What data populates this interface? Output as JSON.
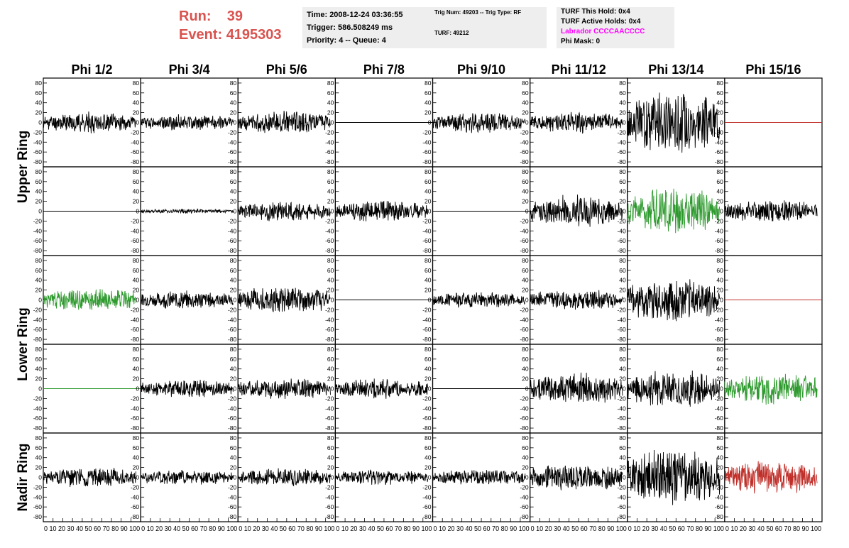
{
  "header": {
    "run_label": "Run:",
    "run_value": "39",
    "event_label": "Event:",
    "event_value": "4195303"
  },
  "info_panel_1": {
    "time": "Time: 2008-12-24 03:36:55",
    "trigger": "Trigger: 586.508249 ms",
    "priority": "Priority: 4 -- Queue: 4"
  },
  "info_panel_2": {
    "trig": "Trig Num: 49203 -- Trig Type: RF",
    "turf": "TURF: 49212"
  },
  "info_panel_3": {
    "this_hold": "TURF This Hold: 0x4",
    "active_holds": "TURF Active Holds: 0x4",
    "labrador": "Labrador CCCCAACCCC",
    "phi_mask": "Phi Mask: 0"
  },
  "colors": {
    "normal": "#000000",
    "triggered": "#2e9a2e",
    "masked": "#c0302a",
    "run_text": "#d9534f",
    "labrador_text": "#ff00ff"
  },
  "chart_data": {
    "type": "line",
    "description_source": "waveform grid: 5 ring rows x 8 phi columns",
    "columns": [
      "Phi 1/2",
      "Phi 3/4",
      "Phi 5/6",
      "Phi 7/8",
      "Phi 9/10",
      "Phi 11/12",
      "Phi 13/14",
      "Phi 15/16"
    ],
    "row_labels": [
      "Upper Ring",
      "Lower Ring",
      "Nadir Ring"
    ],
    "row_label_spans": [
      [
        0,
        1
      ],
      [
        2,
        3
      ],
      [
        4,
        4
      ]
    ],
    "ylim": [
      -90,
      90
    ],
    "yticks": [
      -80,
      -60,
      -40,
      -20,
      0,
      20,
      40,
      60,
      80
    ],
    "xlim": [
      0,
      100
    ],
    "xticks": [
      0,
      10,
      20,
      30,
      40,
      50,
      60,
      70,
      80,
      90,
      100
    ],
    "x_tick_labels_compressed": "0 10 20 30 40 50 60 70 80 90 100",
    "panels": [
      [
        {
          "amp": 18,
          "color": "normal",
          "seed": 11
        },
        {
          "amp": 14,
          "color": "normal",
          "seed": 12
        },
        {
          "amp": 20,
          "color": "normal",
          "seed": 13
        },
        {
          "amp": 0,
          "color": "normal",
          "seed": 14
        },
        {
          "amp": 18,
          "color": "normal",
          "seed": 15
        },
        {
          "amp": 18,
          "color": "normal",
          "seed": 16
        },
        {
          "amp": 55,
          "color": "normal",
          "seed": 17
        },
        {
          "amp": 0,
          "color": "masked",
          "seed": 18
        }
      ],
      [
        {
          "amp": 0,
          "color": "normal",
          "seed": 21
        },
        {
          "amp": 4,
          "color": "normal",
          "seed": 22
        },
        {
          "amp": 18,
          "color": "normal",
          "seed": 23
        },
        {
          "amp": 18,
          "color": "normal",
          "seed": 24
        },
        {
          "amp": 0,
          "color": "normal",
          "seed": 25
        },
        {
          "amp": 28,
          "color": "normal",
          "seed": 26
        },
        {
          "amp": 40,
          "color": "triggered",
          "seed": 27
        },
        {
          "amp": 20,
          "color": "normal",
          "seed": 28
        }
      ],
      [
        {
          "amp": 20,
          "color": "triggered",
          "seed": 31
        },
        {
          "amp": 16,
          "color": "normal",
          "seed": 32
        },
        {
          "amp": 24,
          "color": "normal",
          "seed": 33
        },
        {
          "amp": 0,
          "color": "normal",
          "seed": 34
        },
        {
          "amp": 14,
          "color": "normal",
          "seed": 35
        },
        {
          "amp": 18,
          "color": "normal",
          "seed": 36
        },
        {
          "amp": 40,
          "color": "normal",
          "seed": 37
        },
        {
          "amp": 0,
          "color": "masked",
          "seed": 38
        }
      ],
      [
        {
          "amp": 0,
          "color": "triggered",
          "seed": 41
        },
        {
          "amp": 16,
          "color": "normal",
          "seed": 42
        },
        {
          "amp": 18,
          "color": "normal",
          "seed": 43
        },
        {
          "amp": 18,
          "color": "normal",
          "seed": 44
        },
        {
          "amp": 0,
          "color": "normal",
          "seed": 45
        },
        {
          "amp": 28,
          "color": "normal",
          "seed": 46
        },
        {
          "amp": 32,
          "color": "normal",
          "seed": 47
        },
        {
          "amp": 30,
          "color": "triggered",
          "seed": 48
        }
      ],
      [
        {
          "amp": 18,
          "color": "normal",
          "seed": 51
        },
        {
          "amp": 14,
          "color": "normal",
          "seed": 52
        },
        {
          "amp": 16,
          "color": "normal",
          "seed": 53
        },
        {
          "amp": 14,
          "color": "normal",
          "seed": 54
        },
        {
          "amp": 14,
          "color": "normal",
          "seed": 55
        },
        {
          "amp": 24,
          "color": "normal",
          "seed": 56
        },
        {
          "amp": 50,
          "color": "normal",
          "seed": 57
        },
        {
          "amp": 30,
          "color": "masked",
          "seed": 58
        }
      ]
    ]
  }
}
